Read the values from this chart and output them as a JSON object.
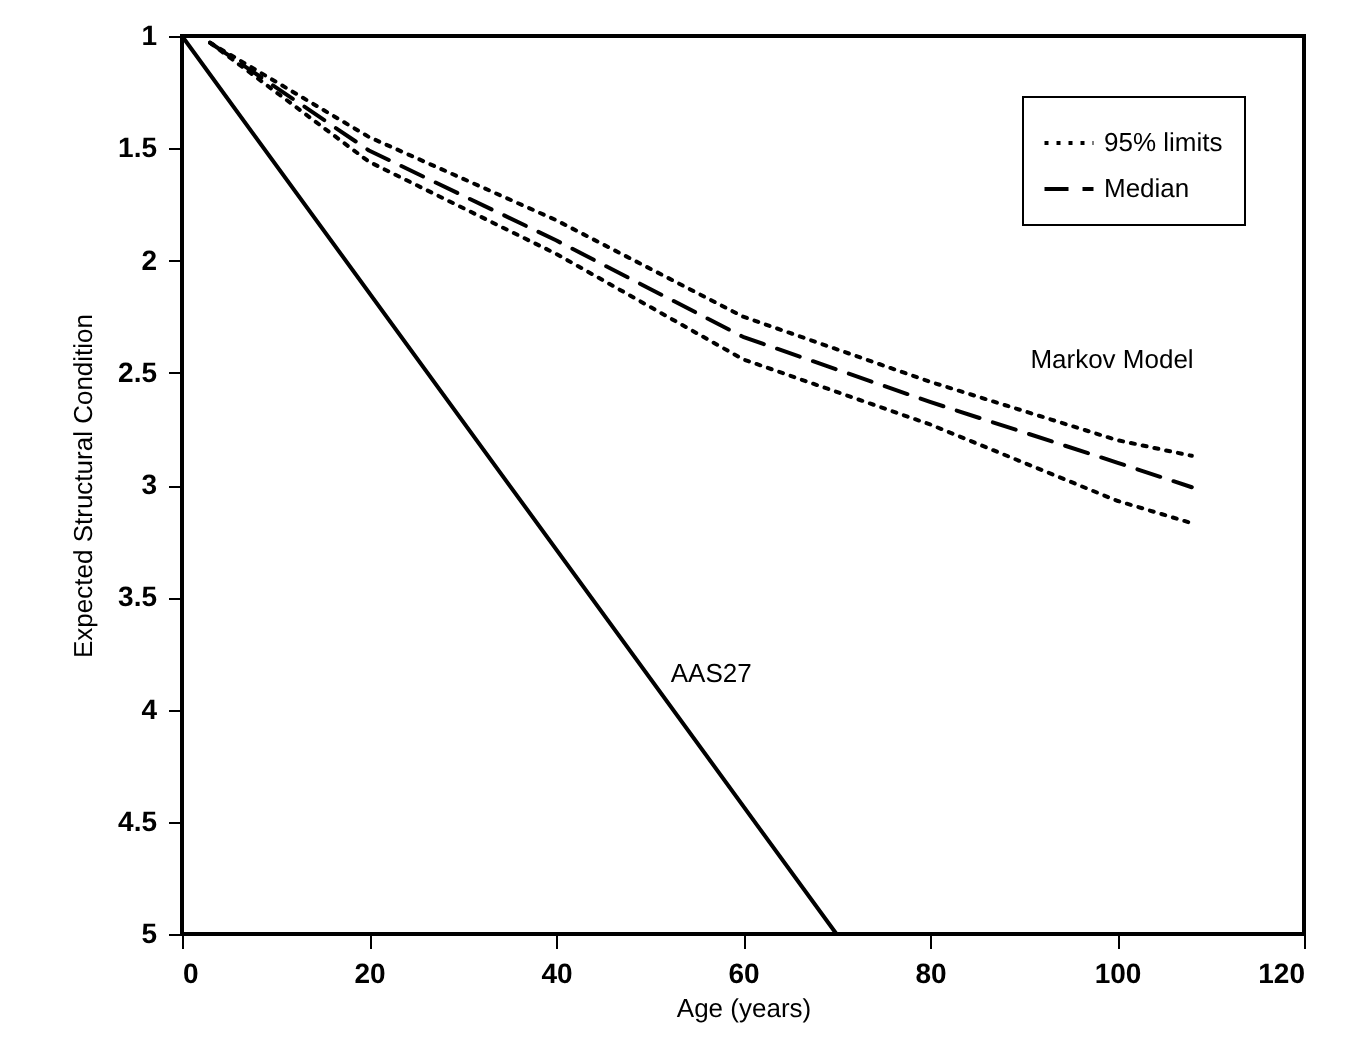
{
  "chart_data": {
    "type": "line",
    "xlabel": "Age (years)",
    "ylabel": "Expected Structural Condition",
    "xlim": [
      0,
      120
    ],
    "xticks": [
      0,
      20,
      40,
      60,
      80,
      100,
      120
    ],
    "ylim": [
      5,
      1
    ],
    "yticks": [
      1,
      1.5,
      2,
      2.5,
      3,
      3.5,
      4,
      4.5,
      5
    ],
    "legend": "top right",
    "annotations": [
      "Markov Model"
    ],
    "series": [
      {
        "name": "95% limits",
        "color": "#000000",
        "line_style": "dotted",
        "x": [
          3,
          20,
          40,
          60,
          80,
          100,
          108
        ],
        "values": [
          1.03,
          1.45,
          1.82,
          2.25,
          2.54,
          2.8,
          2.87
        ]
      },
      {
        "name": "Median",
        "color": "#000000",
        "line_style": "dashed",
        "x": [
          3,
          20,
          40,
          60,
          80,
          100,
          108
        ],
        "values": [
          1.03,
          1.51,
          1.91,
          2.34,
          2.63,
          2.9,
          3.01
        ]
      },
      {
        "color": "#000000",
        "line_style": "dotted",
        "x": [
          3,
          20,
          40,
          60,
          80,
          100,
          108
        ],
        "values": [
          1.03,
          1.56,
          1.97,
          2.44,
          2.73,
          3.07,
          3.17
        ]
      },
      {
        "name": "AAS27",
        "color": "#000000",
        "line_style": "solid",
        "x": [
          0,
          70
        ],
        "values": [
          1,
          5
        ]
      }
    ]
  }
}
